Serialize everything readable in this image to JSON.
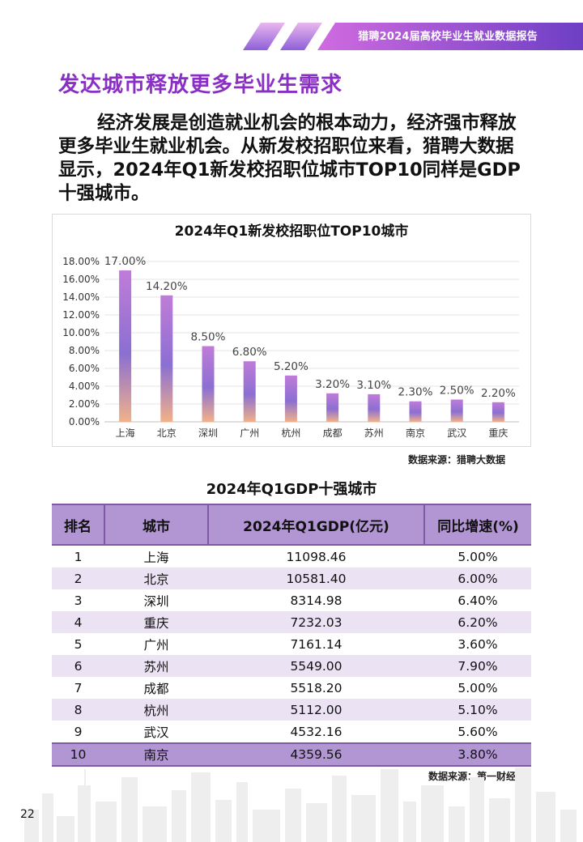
{
  "header": {
    "report_title": "猎聘2024届高校毕业生就业数据报告"
  },
  "headline": "发达城市释放更多毕业生需求",
  "intro": "经济发展是创造就业机会的根本动力，经济强市释放更多毕业生就业机会。从新发校招职位来看，猎聘大数据显示，2024年Q1新发校招职位城市TOP10同样是GDP十强城市。",
  "chart_data": {
    "type": "bar",
    "title": "2024年Q1新发校招职位TOP10城市",
    "categories": [
      "上海",
      "北京",
      "深圳",
      "广州",
      "杭州",
      "成都",
      "苏州",
      "南京",
      "武汉",
      "重庆"
    ],
    "values": [
      17.0,
      14.2,
      8.5,
      6.8,
      5.2,
      3.2,
      3.1,
      2.3,
      2.5,
      2.2
    ],
    "value_labels": [
      "17.00%",
      "14.20%",
      "8.50%",
      "6.80%",
      "5.20%",
      "3.20%",
      "3.10%",
      "2.30%",
      "2.50%",
      "2.20%"
    ],
    "yticks": [
      "0.00%",
      "2.00%",
      "4.00%",
      "6.00%",
      "8.00%",
      "10.00%",
      "12.00%",
      "14.00%",
      "16.00%",
      "18.00%"
    ],
    "ylim": [
      0,
      18
    ],
    "grid": true,
    "colors": {
      "bar_top": "#c07cd8",
      "bar_mid": "#8b6fd2",
      "bar_bottom": "#f1b18a"
    }
  },
  "chart_source": "数据来源：猎聘大数据",
  "table": {
    "title": "2024年Q1GDP十强城市",
    "headers": [
      "排名",
      "城市",
      "2024年Q1GDP(亿元)",
      "同比增速(%)"
    ],
    "rows": [
      [
        "1",
        "上海",
        "11098.46",
        "5.00%"
      ],
      [
        "2",
        "北京",
        "10581.40",
        "6.00%"
      ],
      [
        "3",
        "深圳",
        "8314.98",
        "6.40%"
      ],
      [
        "4",
        "重庆",
        "7232.03",
        "6.20%"
      ],
      [
        "5",
        "广州",
        "7161.14",
        "3.60%"
      ],
      [
        "6",
        "苏州",
        "5549.00",
        "7.90%"
      ],
      [
        "7",
        "成都",
        "5518.20",
        "5.00%"
      ],
      [
        "8",
        "杭州",
        "5112.00",
        "5.10%"
      ],
      [
        "9",
        "武汉",
        "4532.16",
        "5.60%"
      ],
      [
        "10",
        "南京",
        "4359.56",
        "3.80%"
      ]
    ],
    "source": "数据来源：第一财经"
  },
  "page_number": "22"
}
